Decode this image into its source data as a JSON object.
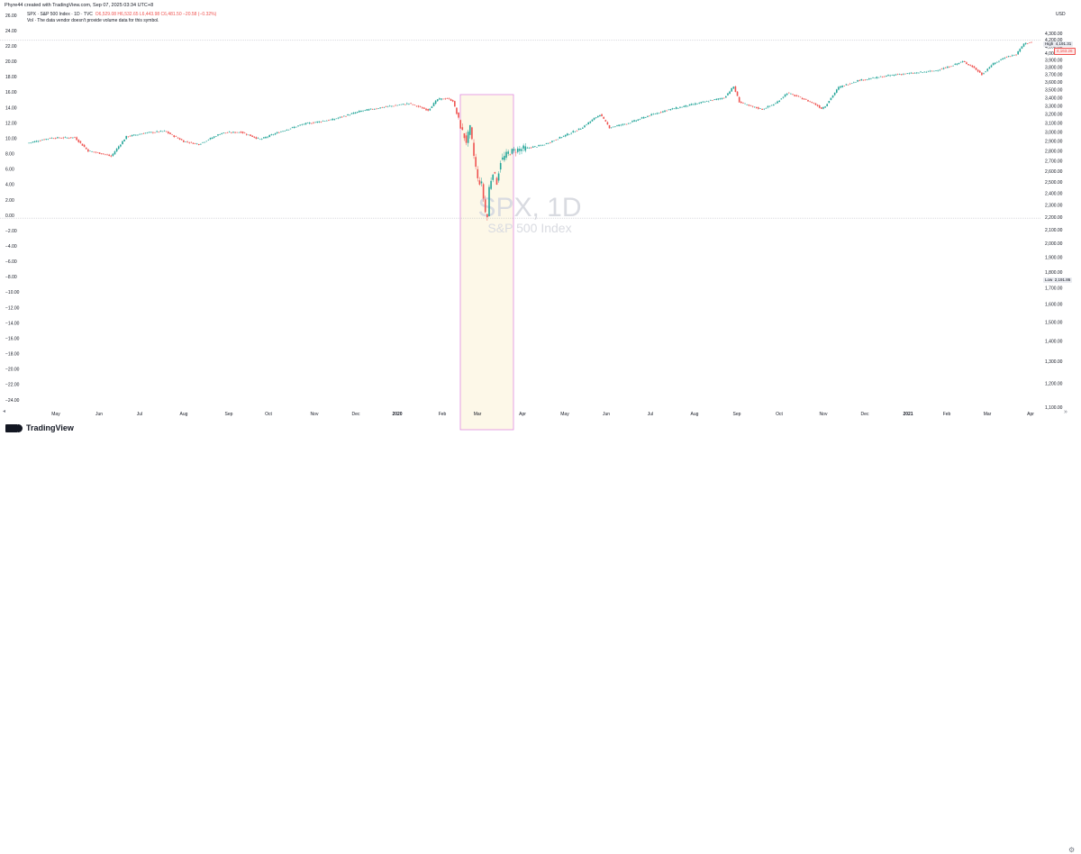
{
  "header": {
    "credit": "Phyre44 created with TradingView.com, Sep 07, 2025 03:34 UTC+8",
    "currency": "USD"
  },
  "legend": {
    "symbol": "SPX · S&P 500 Index · 1D · TVC",
    "ohlc": "O6,529.08 H6,532.65 L6,443.98 C6,481.50 −20.58 (−0.32%)",
    "change_extra": "−20.58 (−0.32%)",
    "vol_note": "Vol · The data vendor doesn't provide volume data for this symbol."
  },
  "watermark": {
    "symbol": "SPX, 1D",
    "name": "S&P 500 Index"
  },
  "markers": {
    "high_label": "High",
    "high_value": "4,191.31",
    "last_value": "4,163.26",
    "low_label": "Low",
    "low_value": "2,191.86"
  },
  "branding": {
    "logo_text": "TradingView"
  },
  "colors": {
    "up": "#26a69a",
    "down": "#ef5350",
    "highlight_fill": "#fdf8e8",
    "highlight_stroke": "#e08ce0"
  },
  "icons": {
    "settings": "gear-icon",
    "goto": "chevron-right-icon",
    "logo": "tradingview-logo-icon"
  },
  "chart_data": {
    "type": "candlestick",
    "title": "SPX, 1D",
    "subtitle": "S&P 500 Index",
    "left_axis": {
      "ticks": [
        "26.00",
        "24.00",
        "22.00",
        "20.00",
        "18.00",
        "16.00",
        "14.00",
        "12.00",
        "10.00",
        "8.00",
        "6.00",
        "4.00",
        "2.00",
        "0.00",
        "−2.00",
        "−4.00",
        "−6.00",
        "−8.00",
        "−10.00",
        "−12.00",
        "−14.00",
        "−16.00",
        "−18.00",
        "−20.00",
        "−22.00",
        "−24.00"
      ],
      "range": [
        -24,
        26
      ]
    },
    "right_axis": {
      "ticks": [
        "4,300.00",
        "4,200.00",
        "4,100.00",
        "4,000.00",
        "3,900.00",
        "3,800.00",
        "3,700.00",
        "3,600.00",
        "3,500.00",
        "3,400.00",
        "3,300.00",
        "3,200.00",
        "3,100.00",
        "3,000.00",
        "2,900.00",
        "2,800.00",
        "2,700.00",
        "2,600.00",
        "2,500.00",
        "2,400.00",
        "2,300.00",
        "2,200.00",
        "2,100.00",
        "2,000.00",
        "1,900.00",
        "1,800.00",
        "1,700.00",
        "1,600.00",
        "1,500.00",
        "1,400.00",
        "1,300.00",
        "1,200.00",
        "1,100.00"
      ],
      "range": [
        1100,
        4300
      ]
    },
    "x_ticks": [
      "May",
      "Jun",
      "Jul",
      "Aug",
      "Sep",
      "Oct",
      "Nov",
      "Dec",
      "2020",
      "Feb",
      "Mar",
      "Apr",
      "May",
      "Jun",
      "Jul",
      "Aug",
      "Sep",
      "Oct",
      "Nov",
      "Dec",
      "2021",
      "Feb",
      "Mar",
      "Apr"
    ],
    "price_path": [
      [
        0,
        2880
      ],
      [
        12,
        2935
      ],
      [
        25,
        2940
      ],
      [
        32,
        2800
      ],
      [
        40,
        2770
      ],
      [
        44,
        2745
      ],
      [
        52,
        2950
      ],
      [
        62,
        2990
      ],
      [
        72,
        3010
      ],
      [
        82,
        2900
      ],
      [
        90,
        2870
      ],
      [
        102,
        2990
      ],
      [
        112,
        3000
      ],
      [
        122,
        2920
      ],
      [
        132,
        3000
      ],
      [
        145,
        3090
      ],
      [
        160,
        3140
      ],
      [
        175,
        3240
      ],
      [
        188,
        3290
      ],
      [
        200,
        3330
      ],
      [
        210,
        3250
      ],
      [
        215,
        3380
      ],
      [
        220,
        3390
      ],
      [
        223,
        3360
      ],
      [
        226,
        3130
      ],
      [
        228,
        3000
      ],
      [
        230,
        2900
      ],
      [
        232,
        3040
      ],
      [
        234,
        2750
      ],
      [
        236,
        2520
      ],
      [
        238,
        2480
      ],
      [
        240,
        2240
      ],
      [
        241,
        2200
      ],
      [
        242,
        2450
      ],
      [
        244,
        2600
      ],
      [
        246,
        2500
      ],
      [
        248,
        2700
      ],
      [
        252,
        2780
      ],
      [
        256,
        2810
      ],
      [
        262,
        2830
      ],
      [
        270,
        2860
      ],
      [
        278,
        2930
      ],
      [
        290,
        3040
      ],
      [
        300,
        3200
      ],
      [
        305,
        3050
      ],
      [
        315,
        3100
      ],
      [
        325,
        3180
      ],
      [
        335,
        3250
      ],
      [
        345,
        3300
      ],
      [
        355,
        3350
      ],
      [
        365,
        3400
      ],
      [
        370,
        3540
      ],
      [
        373,
        3350
      ],
      [
        378,
        3300
      ],
      [
        385,
        3260
      ],
      [
        392,
        3330
      ],
      [
        398,
        3460
      ],
      [
        405,
        3400
      ],
      [
        412,
        3330
      ],
      [
        416,
        3270
      ],
      [
        418,
        3300
      ],
      [
        425,
        3530
      ],
      [
        435,
        3620
      ],
      [
        445,
        3660
      ],
      [
        455,
        3700
      ],
      [
        465,
        3720
      ],
      [
        475,
        3750
      ],
      [
        482,
        3800
      ],
      [
        490,
        3880
      ],
      [
        495,
        3810
      ],
      [
        500,
        3700
      ],
      [
        505,
        3830
      ],
      [
        512,
        3940
      ],
      [
        518,
        3980
      ],
      [
        522,
        4140
      ],
      [
        526,
        4163
      ]
    ],
    "high_value": 4191.31,
    "low_value": 2191.86,
    "last_value": 4163.26,
    "highlight_range": [
      "Feb 2020",
      "Mar 2020"
    ]
  }
}
